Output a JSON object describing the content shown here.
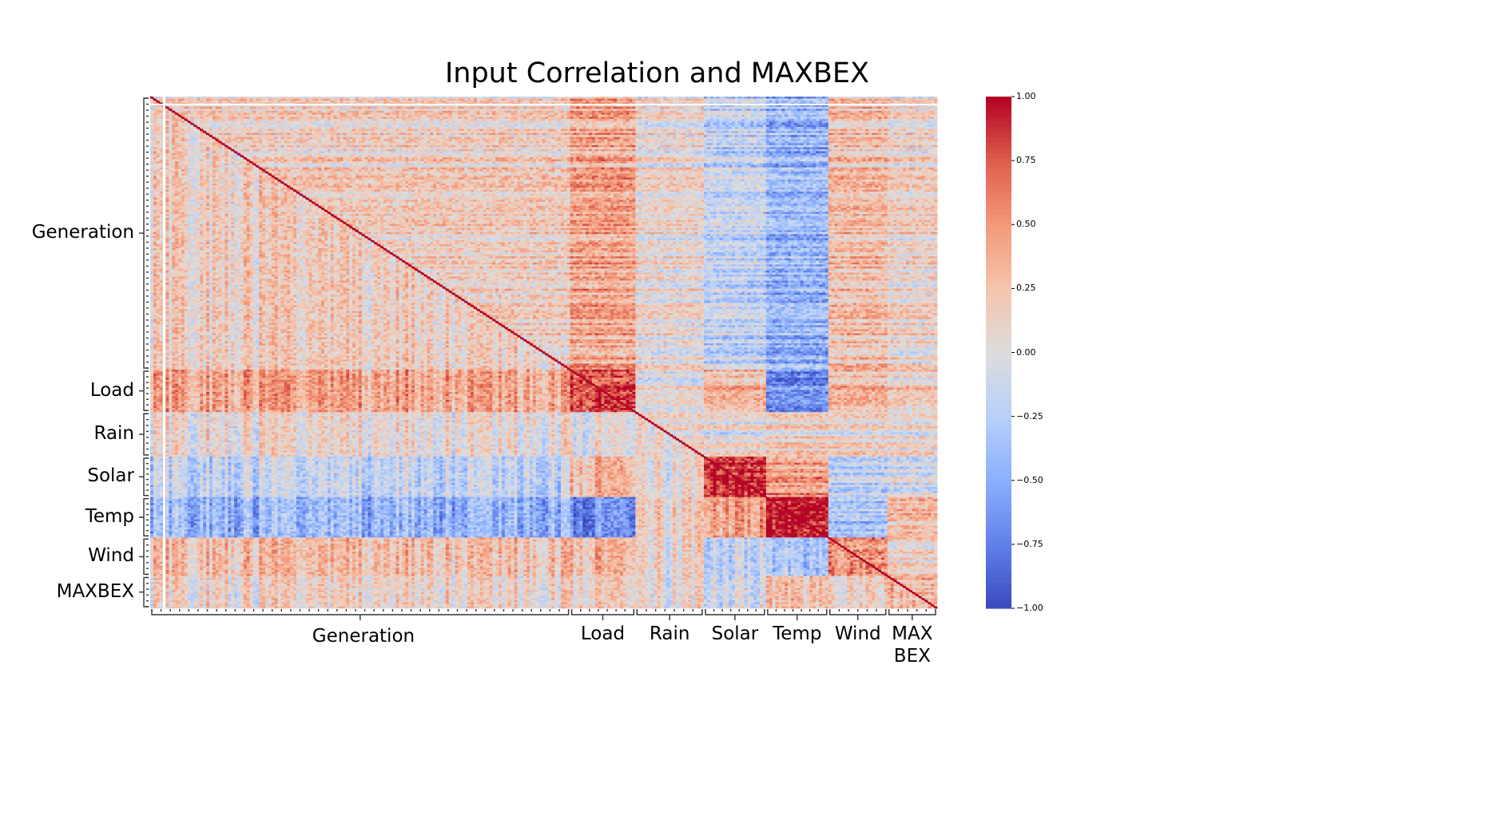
{
  "chart_data": {
    "type": "heatmap",
    "title": "Input Correlation and MAXBEX",
    "groups": [
      {
        "name": "Generation",
        "x_label": "Generation",
        "size": 270
      },
      {
        "name": "Load",
        "x_label": "Load",
        "size": 42
      },
      {
        "name": "Rain",
        "x_label": "Rain",
        "size": 44
      },
      {
        "name": "Solar",
        "x_label": "Solar",
        "size": 40
      },
      {
        "name": "Temp",
        "x_label": "Temp",
        "size": 40
      },
      {
        "name": "Wind",
        "x_label": "Wind",
        "size": 38
      },
      {
        "name": "MAXBEX",
        "x_label": "MAX\nBEX",
        "size": 32
      }
    ],
    "block_correlations": {
      "Generation-Generation": 0.15,
      "Generation-Load": 0.4,
      "Generation-Rain": 0.05,
      "Generation-Solar": -0.2,
      "Generation-Temp": -0.45,
      "Generation-Wind": 0.25,
      "Generation-MAXBEX": 0.1,
      "Load-Load": 0.8,
      "Load-Rain": 0.0,
      "Load-Solar": 0.3,
      "Load-Temp": -0.7,
      "Load-Wind": 0.3,
      "Load-MAXBEX": 0.15,
      "Rain-Rain": 0.05,
      "Rain-Solar": 0.0,
      "Rain-Temp": 0.1,
      "Rain-Wind": 0.05,
      "Rain-MAXBEX": 0.0,
      "Solar-Solar": 0.9,
      "Solar-Temp": 0.45,
      "Solar-Wind": -0.2,
      "Solar-MAXBEX": -0.1,
      "Temp-Temp": 0.9,
      "Temp-Wind": -0.4,
      "Temp-MAXBEX": 0.2,
      "Wind-Wind": 0.5,
      "Wind-MAXBEX": 0.1,
      "MAXBEX-MAXBEX": 0.3
    },
    "colorbar": {
      "colormap": "coolwarm",
      "min": -1.0,
      "max": 1.0,
      "ticks": [
        "1.00",
        "0.75",
        "0.50",
        "0.25",
        "0.00",
        "−0.25",
        "−0.50",
        "−0.75",
        "−1.00"
      ],
      "tick_values": [
        1.0,
        0.75,
        0.5,
        0.25,
        0.0,
        -0.25,
        -0.5,
        -0.75,
        -1.0
      ]
    }
  }
}
